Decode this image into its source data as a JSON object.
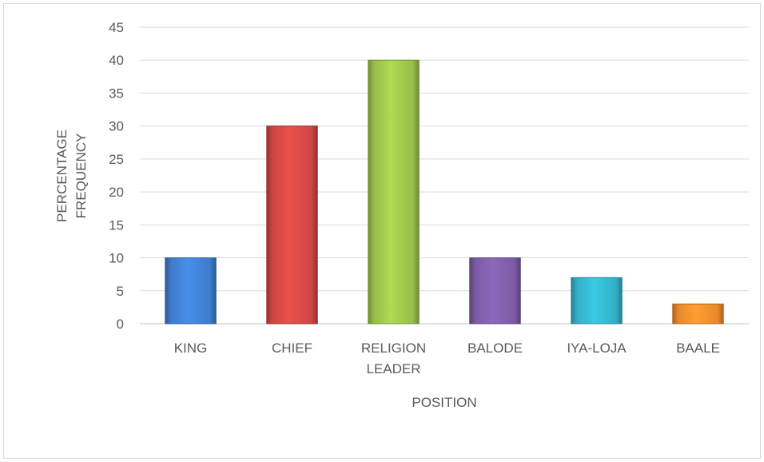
{
  "chart_data": {
    "type": "bar",
    "categories": [
      [
        "KING"
      ],
      [
        "CHIEF"
      ],
      [
        "RELIGION",
        "LEADER"
      ],
      [
        "BALODE"
      ],
      [
        "IYA-LOJA"
      ],
      [
        "BAALE"
      ]
    ],
    "values": [
      10,
      30,
      40,
      10,
      7,
      3
    ],
    "colors": [
      "#3f7fd0",
      "#d24744",
      "#9bc34a",
      "#7e5da8",
      "#34b4cc",
      "#f08c2c"
    ],
    "ylabel": [
      "PERCENTAGE",
      "FREQUENCY"
    ],
    "xlabel": "POSITION",
    "ylim": [
      0,
      45
    ],
    "yticks": [
      0,
      5,
      10,
      15,
      20,
      25,
      30,
      35,
      40,
      45
    ],
    "grid": true,
    "legend": "none"
  }
}
